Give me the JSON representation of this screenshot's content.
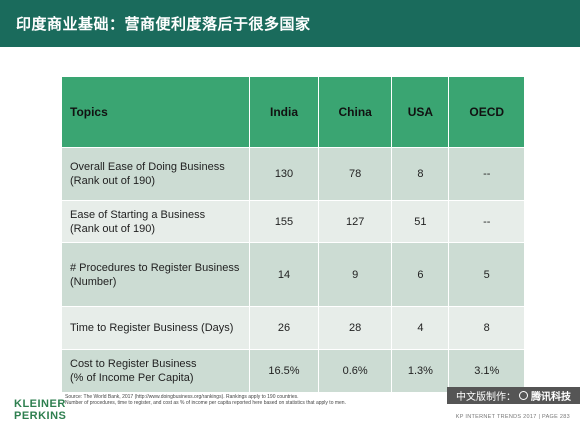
{
  "header": {
    "title": "印度商业基础：营商便利度落后于很多国家"
  },
  "table": {
    "columns": [
      "Topics",
      "India",
      "China",
      "USA",
      "OECD"
    ],
    "rows": [
      {
        "topic": [
          "Overall Ease of Doing Business",
          "(Rank out of 190)"
        ],
        "values": [
          "130",
          "78",
          "8",
          "--"
        ]
      },
      {
        "topic": [
          "Ease of Starting a Business",
          "(Rank out of 190)"
        ],
        "values": [
          "155",
          "127",
          "51",
          "--"
        ]
      },
      {
        "topic": [
          "# Procedures to Register Business",
          "(Number)"
        ],
        "values": [
          "14",
          "9",
          "6",
          "5"
        ]
      },
      {
        "topic": [
          "Time to Register Business (Days)"
        ],
        "values": [
          "26",
          "28",
          "4",
          "8"
        ]
      },
      {
        "topic": [
          "Cost to Register Business",
          "(% of Income Per Capita)"
        ],
        "values": [
          "16.5%",
          "0.6%",
          "1.3%",
          "3.1%"
        ]
      }
    ]
  },
  "source": {
    "line1": "Source: The World Bank, 2017 (http://www.doingbusiness.org/rankings). Rankings apply to 190 countries.",
    "line2": "Number of procedures, time to register, and cost as % of income per capita reported here based on statistics that apply to men."
  },
  "logo": {
    "line1": "KLEINER",
    "line2": "PERKINS"
  },
  "badge": {
    "prefix": "中文版制作：",
    "brand": "腾讯科技"
  },
  "footer": {
    "text": "KP INTERNET TRENDS 2017  |  PAGE 283"
  },
  "colors": {
    "header_bg": "#1a6b5c",
    "table_header_bg": "#3aa572",
    "row_odd": "#ccdcd3",
    "row_even": "#e7ede9",
    "logo": "#2e7f4f"
  }
}
